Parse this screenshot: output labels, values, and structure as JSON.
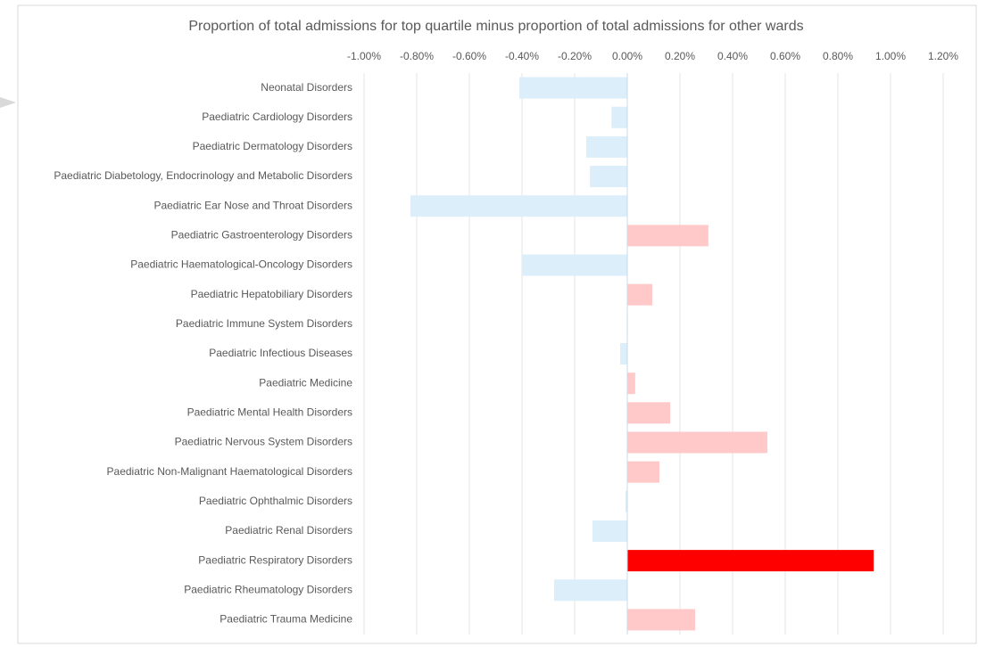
{
  "chart_data": {
    "type": "barh",
    "title": "Proportion of total admissions for top quartile minus proportion of total admissions for other wards",
    "categories": [
      "Neonatal Disorders",
      "Paediatric Cardiology Disorders",
      "Paediatric Dermatology Disorders",
      "Paediatric Diabetology, Endocrinology and Metabolic Disorders",
      "Paediatric Ear Nose and Throat Disorders",
      "Paediatric Gastroenterology Disorders",
      "Paediatric Haematological-Oncology Disorders",
      "Paediatric Hepatobiliary Disorders",
      "Paediatric Immune System Disorders",
      "Paediatric Infectious Diseases",
      "Paediatric Medicine",
      "Paediatric Mental Health Disorders",
      "Paediatric Nervous System Disorders",
      "Paediatric Non-Malignant Haematological Disorders",
      "Paediatric Ophthalmic Disorders",
      "Paediatric Renal Disorders",
      "Paediatric Respiratory Disorders",
      "Paediatric Rheumatology Disorders",
      "Paediatric Trauma Medicine"
    ],
    "values": [
      -0.41,
      -0.06,
      -0.156,
      -0.142,
      -0.824,
      0.308,
      -0.4,
      0.095,
      0.002,
      -0.027,
      0.03,
      0.163,
      0.532,
      0.122,
      -0.007,
      -0.132,
      0.936,
      -0.278,
      0.258
    ],
    "colors": [
      "#dbeef9",
      "#dbeef9",
      "#dbeef9",
      "#dbeef9",
      "#dbeef9",
      "#ffc9c9",
      "#dbeef9",
      "#ffc9c9",
      "#ffc9c9",
      "#dbeef9",
      "#ffc9c9",
      "#ffc9c9",
      "#ffc9c9",
      "#ffc9c9",
      "#dbeef9",
      "#dbeef9",
      "#ff0000",
      "#dbeef9",
      "#ffc9c9"
    ],
    "xlim": [
      -1.1,
      1.2
    ],
    "xticks": [
      {
        "value": -1,
        "label": "-1.00%"
      },
      {
        "value": -0.8,
        "label": "-0.80%"
      },
      {
        "value": -0.6,
        "label": "-0.60%"
      },
      {
        "value": -0.4,
        "label": "-0.40%"
      },
      {
        "value": -0.2,
        "label": "-0.20%"
      },
      {
        "value": 0,
        "label": "0.00%"
      },
      {
        "value": 0.2,
        "label": "0.20%"
      },
      {
        "value": 0.4,
        "label": "0.40%"
      },
      {
        "value": 0.6,
        "label": "0.60%"
      },
      {
        "value": 0.8,
        "label": "0.80%"
      },
      {
        "value": 1,
        "label": "1.00%"
      },
      {
        "value": 1.2,
        "label": "1.20%"
      }
    ],
    "grid": true
  }
}
